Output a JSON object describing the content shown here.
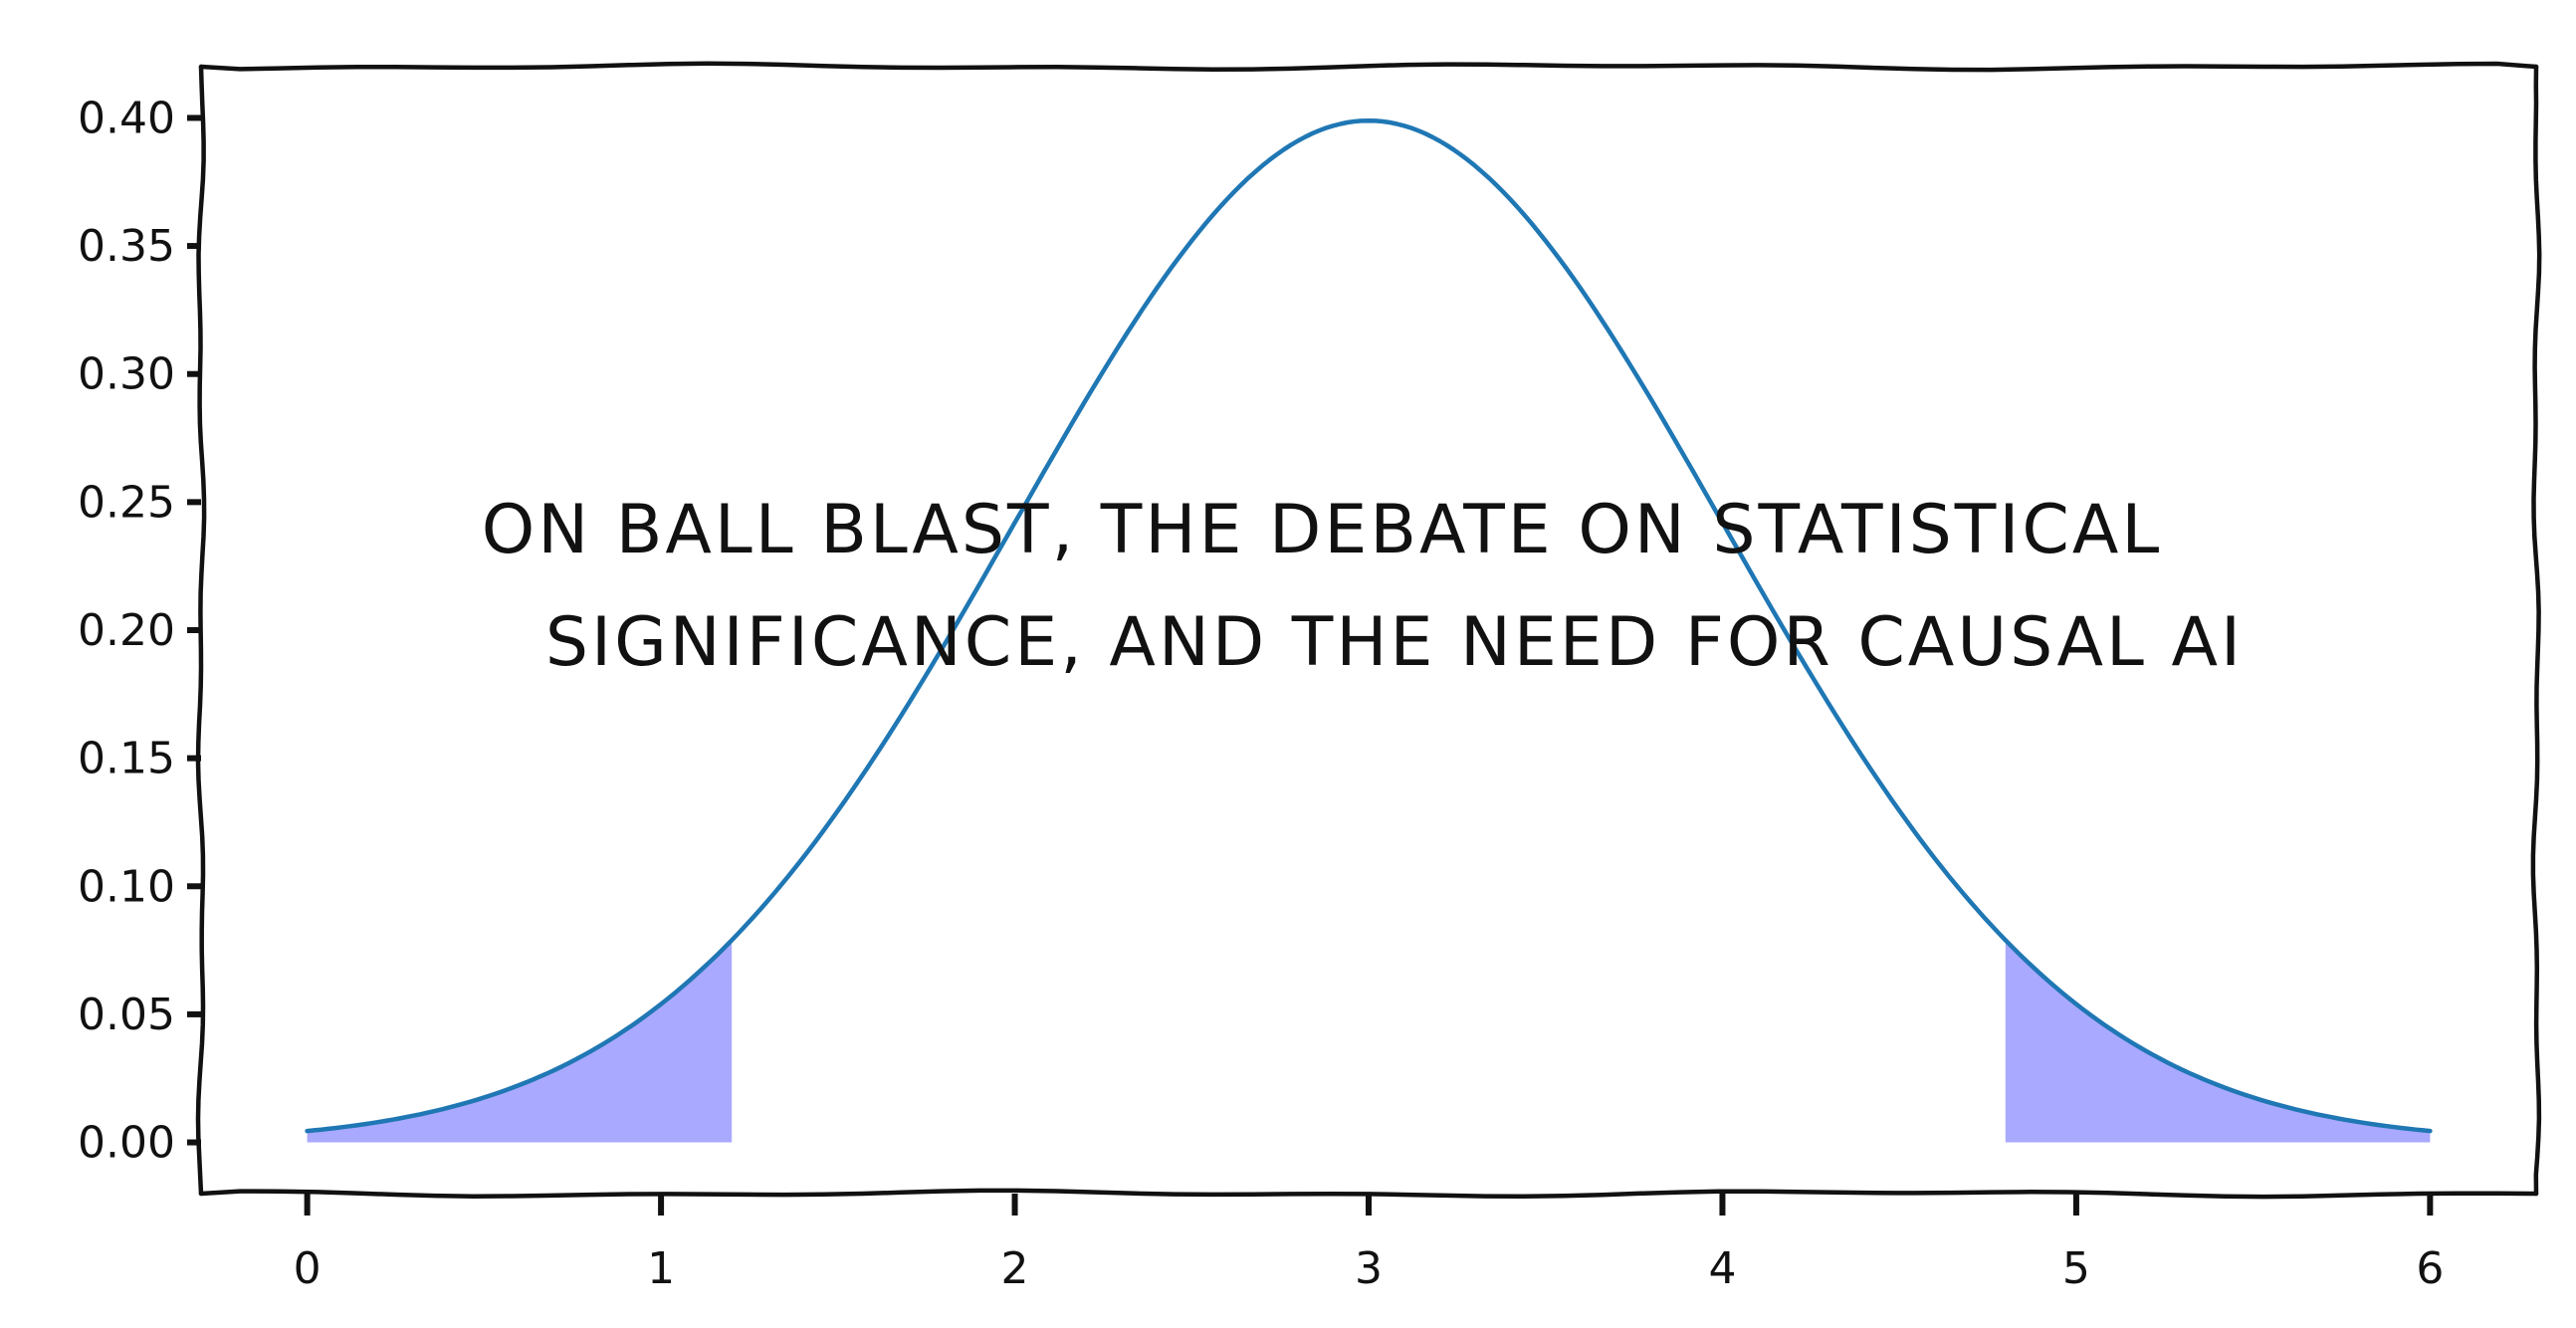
{
  "chart_data": {
    "type": "area",
    "title": "",
    "xlabel": "",
    "ylabel": "",
    "xlim": [
      -0.3,
      6.3
    ],
    "ylim": [
      -0.02,
      0.42
    ],
    "x_ticks": [
      0,
      1,
      2,
      3,
      4,
      5,
      6
    ],
    "x_tick_labels": [
      "0",
      "1",
      "2",
      "3",
      "4",
      "5",
      "6"
    ],
    "y_ticks": [
      0.0,
      0.05,
      0.1,
      0.15,
      0.2,
      0.25,
      0.3,
      0.35,
      0.4
    ],
    "y_tick_labels": [
      "0.00",
      "0.05",
      "0.10",
      "0.15",
      "0.20",
      "0.25",
      "0.30",
      "0.35",
      "0.40"
    ],
    "grid": false,
    "curve": {
      "mean": 3,
      "sd": 1,
      "x_start": 0,
      "x_end": 6,
      "color": "#1f77b4"
    },
    "shaded_regions": [
      {
        "x_start": 0,
        "x_end": 1.2,
        "color": "#a9a9ff"
      },
      {
        "x_start": 4.8,
        "x_end": 6,
        "color": "#a9a9ff"
      }
    ],
    "annotation": {
      "lines": [
        "ON  BALL BLAST, THE DEBATE ON STATISTICAL",
        "SIGNIFICANCE, AND THE NEED FOR CAUSAL AI"
      ]
    }
  }
}
